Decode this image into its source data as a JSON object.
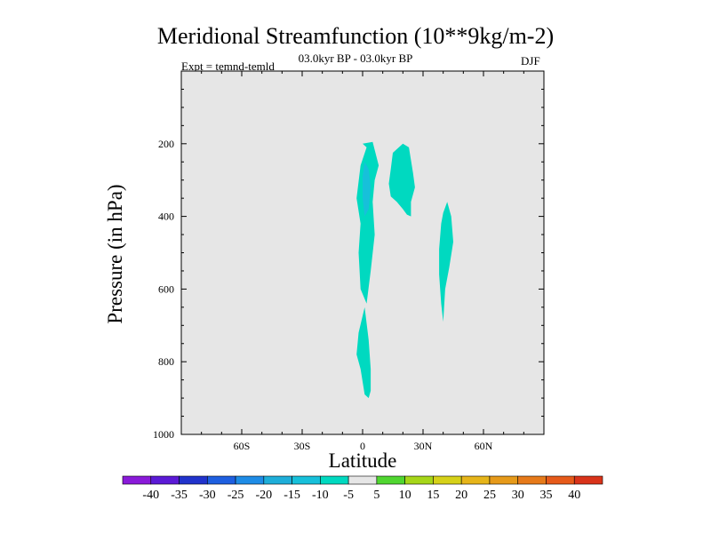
{
  "chart_data": {
    "type": "contour",
    "title": "Meridional Streamfunction (10**9kg/m-2)",
    "subtitle": "03.0kyr BP - 03.0kyr BP",
    "expt_label": "Expt = temnd-temld",
    "season": "DJF",
    "xlabel": "Latitude",
    "ylabel": "Pressure (in hPa)",
    "xlim": [
      -90,
      90
    ],
    "ylim": [
      1000,
      0
    ],
    "xticks": [
      {
        "value": -60,
        "label": "60S"
      },
      {
        "value": -30,
        "label": "30S"
      },
      {
        "value": 0,
        "label": "0"
      },
      {
        "value": 30,
        "label": "30N"
      },
      {
        "value": 60,
        "label": "60N"
      }
    ],
    "yticks": [
      {
        "value": 200,
        "label": "200"
      },
      {
        "value": 400,
        "label": "400"
      },
      {
        "value": 600,
        "label": "600"
      },
      {
        "value": 800,
        "label": "800"
      },
      {
        "value": 1000,
        "label": "1000"
      }
    ],
    "background_color": "#e6e6e6",
    "regions": [
      {
        "level": "-10 to -5",
        "color": "#00d9c0",
        "points": [
          [
            0,
            200
          ],
          [
            5,
            195
          ],
          [
            8,
            260
          ],
          [
            6,
            300
          ],
          [
            5,
            360
          ],
          [
            6,
            450
          ],
          [
            4,
            550
          ],
          [
            2,
            640
          ],
          [
            -1,
            600
          ],
          [
            -2,
            500
          ],
          [
            -1,
            420
          ],
          [
            -3,
            350
          ],
          [
            -1,
            260
          ],
          [
            2,
            210
          ]
        ]
      },
      {
        "level": "-10 to -5",
        "color": "#00d9c0",
        "points": [
          [
            1,
            650
          ],
          [
            3,
            740
          ],
          [
            4,
            820
          ],
          [
            4,
            880
          ],
          [
            3,
            900
          ],
          [
            1,
            890
          ],
          [
            -1,
            820
          ],
          [
            -3,
            780
          ],
          [
            -2,
            720
          ]
        ]
      },
      {
        "level": "-15 to -10",
        "color": "#17c0da",
        "points": [
          [
            1,
            250
          ],
          [
            3,
            270
          ],
          [
            4,
            320
          ],
          [
            3,
            380
          ],
          [
            1,
            400
          ],
          [
            0,
            350
          ],
          [
            0,
            290
          ]
        ]
      },
      {
        "level": "-10 to -5",
        "color": "#00d9c0",
        "points": [
          [
            15,
            225
          ],
          [
            20,
            200
          ],
          [
            23,
            210
          ],
          [
            25,
            280
          ],
          [
            26,
            320
          ],
          [
            24,
            360
          ],
          [
            24,
            400
          ],
          [
            22,
            395
          ],
          [
            20,
            380
          ],
          [
            17,
            360
          ],
          [
            14,
            345
          ],
          [
            13,
            310
          ],
          [
            14,
            270
          ]
        ]
      },
      {
        "level": "-10 to -5",
        "color": "#00d9c0",
        "points": [
          [
            42,
            360
          ],
          [
            44,
            400
          ],
          [
            45,
            470
          ],
          [
            43,
            540
          ],
          [
            41,
            600
          ],
          [
            40,
            690
          ],
          [
            39,
            640
          ],
          [
            38,
            560
          ],
          [
            38,
            490
          ],
          [
            39,
            420
          ],
          [
            40,
            390
          ]
        ]
      }
    ],
    "colorbar": {
      "labels": [
        "-40",
        "-35",
        "-30",
        "-25",
        "-20",
        "-15",
        "-10",
        "-5",
        "5",
        "10",
        "15",
        "20",
        "25",
        "30",
        "35",
        "40"
      ],
      "colors": [
        "#8a1ad9",
        "#5b1ad6",
        "#2133cc",
        "#1e5fe0",
        "#1e8ce6",
        "#1eaed9",
        "#17c0da",
        "#00d9c0",
        "#e6e6e6",
        "#50d630",
        "#a6d619",
        "#d6d119",
        "#e6b51a",
        "#e69a1a",
        "#e67a1a",
        "#e65a1a",
        "#d9331a"
      ]
    }
  }
}
